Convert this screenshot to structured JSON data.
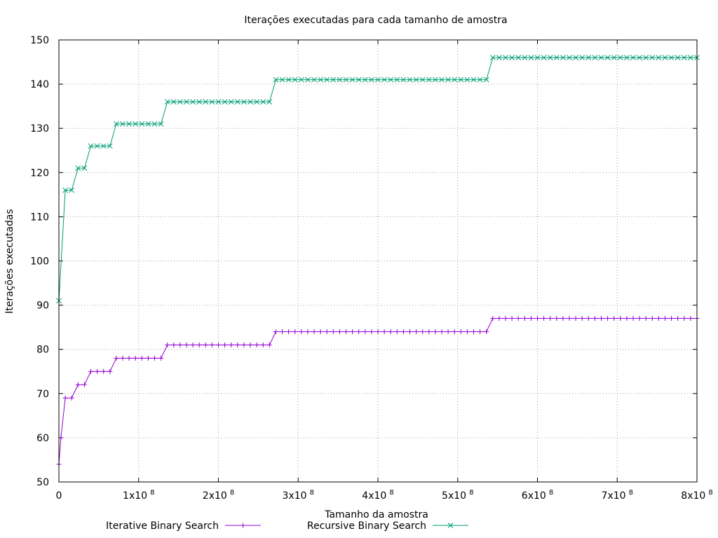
{
  "chart_data": {
    "type": "line",
    "title": "Iterações executadas para cada tamanho de amostra",
    "xlabel": "Tamanho da amostra",
    "ylabel": "Iterações executadas",
    "xlim": [
      0,
      800000000
    ],
    "ylim": [
      50,
      150
    ],
    "grid": true,
    "legend_position": "bottom",
    "x_ticks": [
      {
        "value": 0,
        "base": "0",
        "exp": ""
      },
      {
        "value": 100000000,
        "base": "1x10",
        "exp": "8"
      },
      {
        "value": 200000000,
        "base": "2x10",
        "exp": "8"
      },
      {
        "value": 300000000,
        "base": "3x10",
        "exp": "8"
      },
      {
        "value": 400000000,
        "base": "4x10",
        "exp": "8"
      },
      {
        "value": 500000000,
        "base": "5x10",
        "exp": "8"
      },
      {
        "value": 600000000,
        "base": "6x10",
        "exp": "8"
      },
      {
        "value": 700000000,
        "base": "7x10",
        "exp": "8"
      },
      {
        "value": 800000000,
        "base": "8x10",
        "exp": "8"
      }
    ],
    "y_ticks": [
      50,
      60,
      70,
      80,
      90,
      100,
      110,
      120,
      130,
      140,
      150
    ],
    "series": [
      {
        "name": "Iterative Binary Search",
        "color": "#9400d3",
        "marker": "plus",
        "points": [
          [
            0,
            54
          ],
          [
            2500000,
            60
          ],
          [
            8000000,
            69
          ],
          [
            16000000,
            69
          ],
          [
            24000000,
            72
          ],
          [
            32000000,
            72
          ],
          [
            40000000,
            75
          ],
          [
            48000000,
            75
          ],
          [
            56000000,
            75
          ],
          [
            64000000,
            75
          ],
          [
            72000000,
            78
          ],
          [
            80000000,
            78
          ],
          [
            88000000,
            78
          ],
          [
            96000000,
            78
          ],
          [
            104000000,
            78
          ],
          [
            112000000,
            78
          ],
          [
            120000000,
            78
          ],
          [
            128000000,
            78
          ],
          [
            136000000,
            81
          ],
          [
            144000000,
            81
          ],
          [
            152000000,
            81
          ],
          [
            160000000,
            81
          ],
          [
            168000000,
            81
          ],
          [
            176000000,
            81
          ],
          [
            184000000,
            81
          ],
          [
            192000000,
            81
          ],
          [
            200000000,
            81
          ],
          [
            208000000,
            81
          ],
          [
            216000000,
            81
          ],
          [
            224000000,
            81
          ],
          [
            232000000,
            81
          ],
          [
            240000000,
            81
          ],
          [
            248000000,
            81
          ],
          [
            256000000,
            81
          ],
          [
            264000000,
            81
          ],
          [
            272000000,
            84
          ],
          [
            280000000,
            84
          ],
          [
            288000000,
            84
          ],
          [
            296000000,
            84
          ],
          [
            304000000,
            84
          ],
          [
            312000000,
            84
          ],
          [
            320000000,
            84
          ],
          [
            328000000,
            84
          ],
          [
            336000000,
            84
          ],
          [
            344000000,
            84
          ],
          [
            352000000,
            84
          ],
          [
            360000000,
            84
          ],
          [
            368000000,
            84
          ],
          [
            376000000,
            84
          ],
          [
            384000000,
            84
          ],
          [
            392000000,
            84
          ],
          [
            400000000,
            84
          ],
          [
            408000000,
            84
          ],
          [
            416000000,
            84
          ],
          [
            424000000,
            84
          ],
          [
            432000000,
            84
          ],
          [
            440000000,
            84
          ],
          [
            448000000,
            84
          ],
          [
            456000000,
            84
          ],
          [
            464000000,
            84
          ],
          [
            472000000,
            84
          ],
          [
            480000000,
            84
          ],
          [
            488000000,
            84
          ],
          [
            496000000,
            84
          ],
          [
            504000000,
            84
          ],
          [
            512000000,
            84
          ],
          [
            520000000,
            84
          ],
          [
            528000000,
            84
          ],
          [
            536000000,
            84
          ],
          [
            544000000,
            87
          ],
          [
            552000000,
            87
          ],
          [
            560000000,
            87
          ],
          [
            568000000,
            87
          ],
          [
            576000000,
            87
          ],
          [
            584000000,
            87
          ],
          [
            592000000,
            87
          ],
          [
            600000000,
            87
          ],
          [
            608000000,
            87
          ],
          [
            616000000,
            87
          ],
          [
            624000000,
            87
          ],
          [
            632000000,
            87
          ],
          [
            640000000,
            87
          ],
          [
            648000000,
            87
          ],
          [
            656000000,
            87
          ],
          [
            664000000,
            87
          ],
          [
            672000000,
            87
          ],
          [
            680000000,
            87
          ],
          [
            688000000,
            87
          ],
          [
            696000000,
            87
          ],
          [
            704000000,
            87
          ],
          [
            712000000,
            87
          ],
          [
            720000000,
            87
          ],
          [
            728000000,
            87
          ],
          [
            736000000,
            87
          ],
          [
            744000000,
            87
          ],
          [
            752000000,
            87
          ],
          [
            760000000,
            87
          ],
          [
            768000000,
            87
          ],
          [
            776000000,
            87
          ],
          [
            784000000,
            87
          ],
          [
            792000000,
            87
          ],
          [
            800000000,
            87
          ]
        ]
      },
      {
        "name": "Recursive Binary Search",
        "color": "#009e73",
        "marker": "cross",
        "points": [
          [
            0,
            91
          ],
          [
            8000000,
            116
          ],
          [
            16000000,
            116
          ],
          [
            24000000,
            121
          ],
          [
            32000000,
            121
          ],
          [
            40000000,
            126
          ],
          [
            48000000,
            126
          ],
          [
            56000000,
            126
          ],
          [
            64000000,
            126
          ],
          [
            72000000,
            131
          ],
          [
            80000000,
            131
          ],
          [
            88000000,
            131
          ],
          [
            96000000,
            131
          ],
          [
            104000000,
            131
          ],
          [
            112000000,
            131
          ],
          [
            120000000,
            131
          ],
          [
            128000000,
            131
          ],
          [
            136000000,
            136
          ],
          [
            144000000,
            136
          ],
          [
            152000000,
            136
          ],
          [
            160000000,
            136
          ],
          [
            168000000,
            136
          ],
          [
            176000000,
            136
          ],
          [
            184000000,
            136
          ],
          [
            192000000,
            136
          ],
          [
            200000000,
            136
          ],
          [
            208000000,
            136
          ],
          [
            216000000,
            136
          ],
          [
            224000000,
            136
          ],
          [
            232000000,
            136
          ],
          [
            240000000,
            136
          ],
          [
            248000000,
            136
          ],
          [
            256000000,
            136
          ],
          [
            264000000,
            136
          ],
          [
            272000000,
            141
          ],
          [
            280000000,
            141
          ],
          [
            288000000,
            141
          ],
          [
            296000000,
            141
          ],
          [
            304000000,
            141
          ],
          [
            312000000,
            141
          ],
          [
            320000000,
            141
          ],
          [
            328000000,
            141
          ],
          [
            336000000,
            141
          ],
          [
            344000000,
            141
          ],
          [
            352000000,
            141
          ],
          [
            360000000,
            141
          ],
          [
            368000000,
            141
          ],
          [
            376000000,
            141
          ],
          [
            384000000,
            141
          ],
          [
            392000000,
            141
          ],
          [
            400000000,
            141
          ],
          [
            408000000,
            141
          ],
          [
            416000000,
            141
          ],
          [
            424000000,
            141
          ],
          [
            432000000,
            141
          ],
          [
            440000000,
            141
          ],
          [
            448000000,
            141
          ],
          [
            456000000,
            141
          ],
          [
            464000000,
            141
          ],
          [
            472000000,
            141
          ],
          [
            480000000,
            141
          ],
          [
            488000000,
            141
          ],
          [
            496000000,
            141
          ],
          [
            504000000,
            141
          ],
          [
            512000000,
            141
          ],
          [
            520000000,
            141
          ],
          [
            528000000,
            141
          ],
          [
            536000000,
            141
          ],
          [
            544000000,
            146
          ],
          [
            552000000,
            146
          ],
          [
            560000000,
            146
          ],
          [
            568000000,
            146
          ],
          [
            576000000,
            146
          ],
          [
            584000000,
            146
          ],
          [
            592000000,
            146
          ],
          [
            600000000,
            146
          ],
          [
            608000000,
            146
          ],
          [
            616000000,
            146
          ],
          [
            624000000,
            146
          ],
          [
            632000000,
            146
          ],
          [
            640000000,
            146
          ],
          [
            648000000,
            146
          ],
          [
            656000000,
            146
          ],
          [
            664000000,
            146
          ],
          [
            672000000,
            146
          ],
          [
            680000000,
            146
          ],
          [
            688000000,
            146
          ],
          [
            696000000,
            146
          ],
          [
            704000000,
            146
          ],
          [
            712000000,
            146
          ],
          [
            720000000,
            146
          ],
          [
            728000000,
            146
          ],
          [
            736000000,
            146
          ],
          [
            744000000,
            146
          ],
          [
            752000000,
            146
          ],
          [
            760000000,
            146
          ],
          [
            768000000,
            146
          ],
          [
            776000000,
            146
          ],
          [
            784000000,
            146
          ],
          [
            792000000,
            146
          ],
          [
            800000000,
            146
          ]
        ]
      }
    ]
  }
}
